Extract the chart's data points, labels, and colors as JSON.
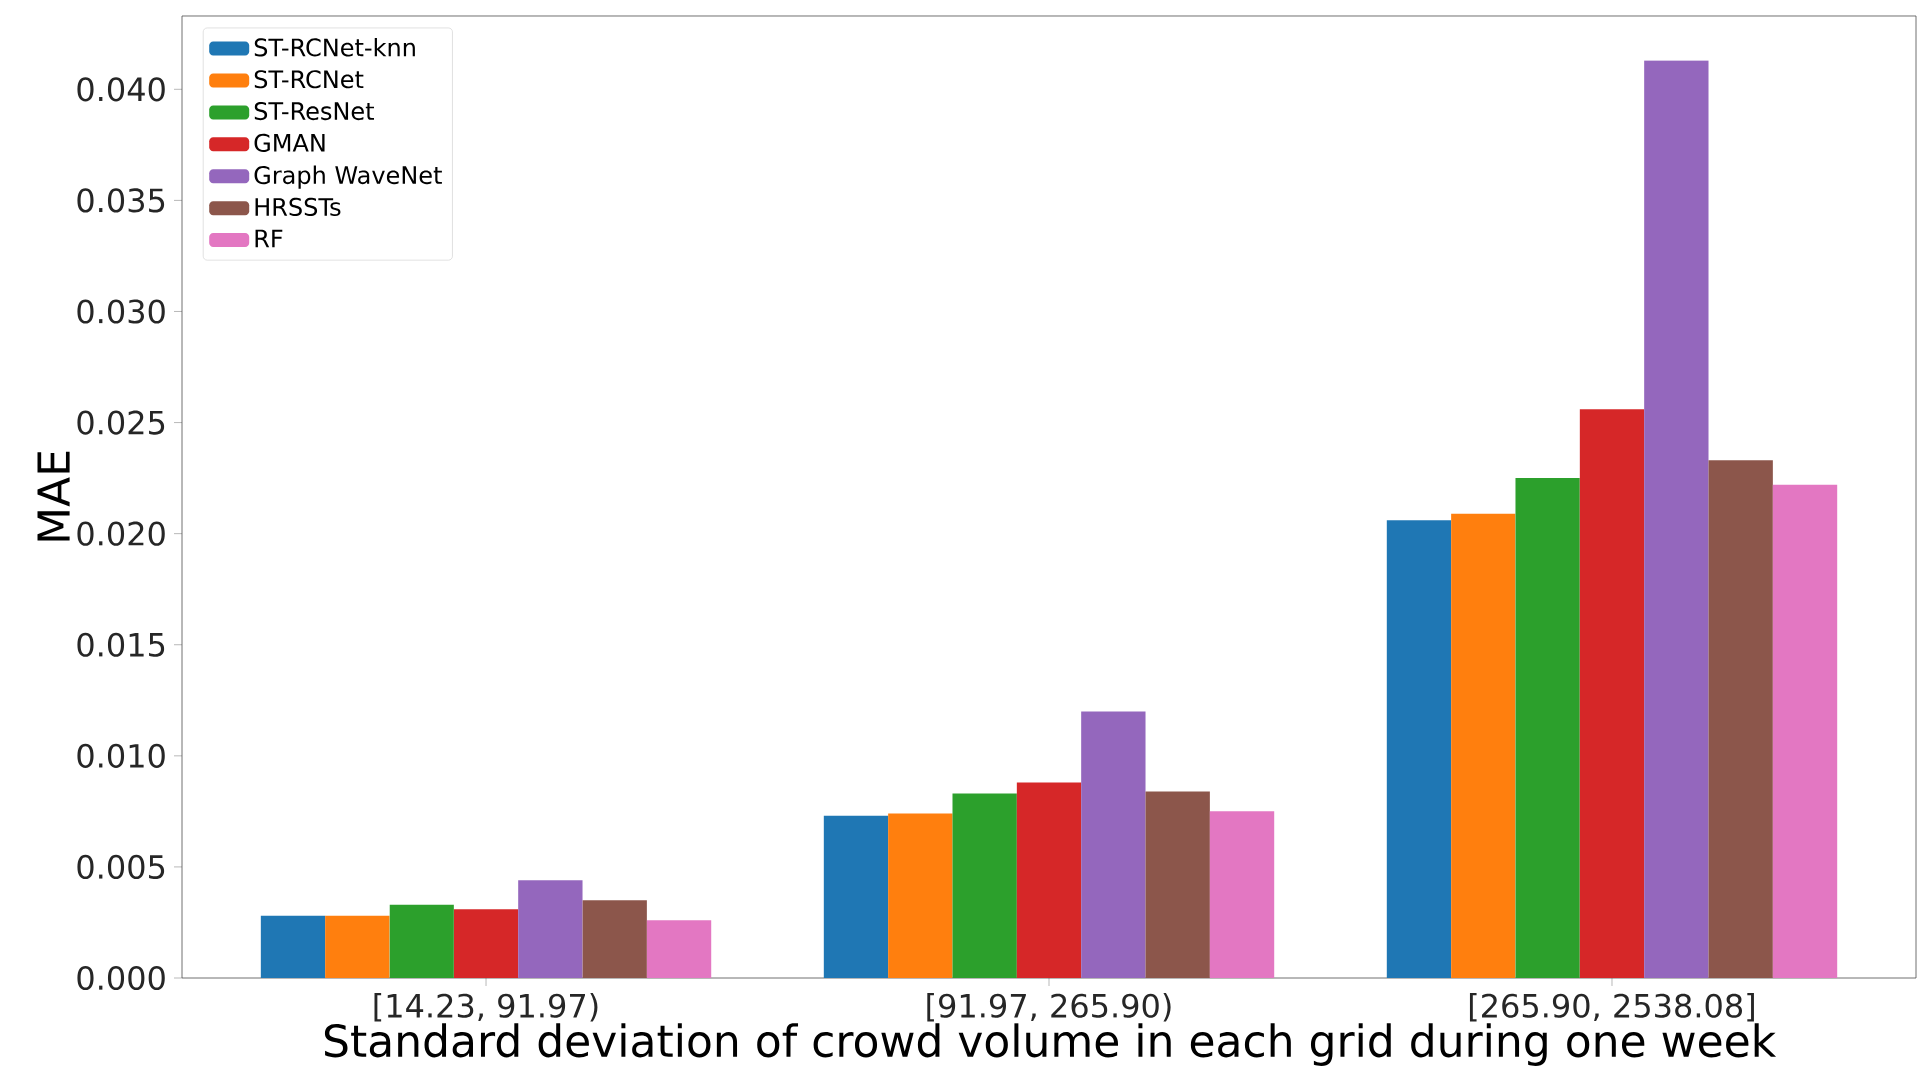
{
  "chart_data": {
    "type": "bar",
    "xlabel": "Standard deviation of crowd volume in each grid during one week",
    "ylabel": "MAE",
    "categories": [
      "[14.23, 91.97)",
      "[91.97, 265.90)",
      "[265.90, 2538.08]"
    ],
    "series": [
      {
        "name": "ST-RCNet-knn",
        "color": "#1f77b4",
        "values": [
          0.0028,
          0.0073,
          0.0206
        ]
      },
      {
        "name": "ST-RCNet",
        "color": "#ff7f0e",
        "values": [
          0.0028,
          0.0074,
          0.0209
        ]
      },
      {
        "name": "ST-ResNet",
        "color": "#2ca02c",
        "values": [
          0.0033,
          0.0083,
          0.0225
        ]
      },
      {
        "name": "GMAN",
        "color": "#d62728",
        "values": [
          0.0031,
          0.0088,
          0.0256
        ]
      },
      {
        "name": "Graph WaveNet",
        "color": "#9467bd",
        "values": [
          0.0044,
          0.012,
          0.0413
        ]
      },
      {
        "name": "HRSSTs",
        "color": "#8c564b",
        "values": [
          0.0035,
          0.0084,
          0.0233
        ]
      },
      {
        "name": "RF",
        "color": "#e377c2",
        "values": [
          0.0026,
          0.0075,
          0.0222
        ]
      }
    ],
    "ylim": [
      0,
      0.0433
    ],
    "yticks": [
      {
        "value": 0,
        "label": "0.000"
      },
      {
        "value": 0.005,
        "label": "0.005"
      },
      {
        "value": 0.01,
        "label": "0.010"
      },
      {
        "value": 0.015,
        "label": "0.015"
      },
      {
        "value": 0.02,
        "label": "0.020"
      },
      {
        "value": 0.025,
        "label": "0.025"
      },
      {
        "value": 0.03,
        "label": "0.030"
      },
      {
        "value": 0.035,
        "label": "0.035"
      },
      {
        "value": 0.04,
        "label": "0.040"
      }
    ],
    "grid": false,
    "legend": "top left"
  }
}
